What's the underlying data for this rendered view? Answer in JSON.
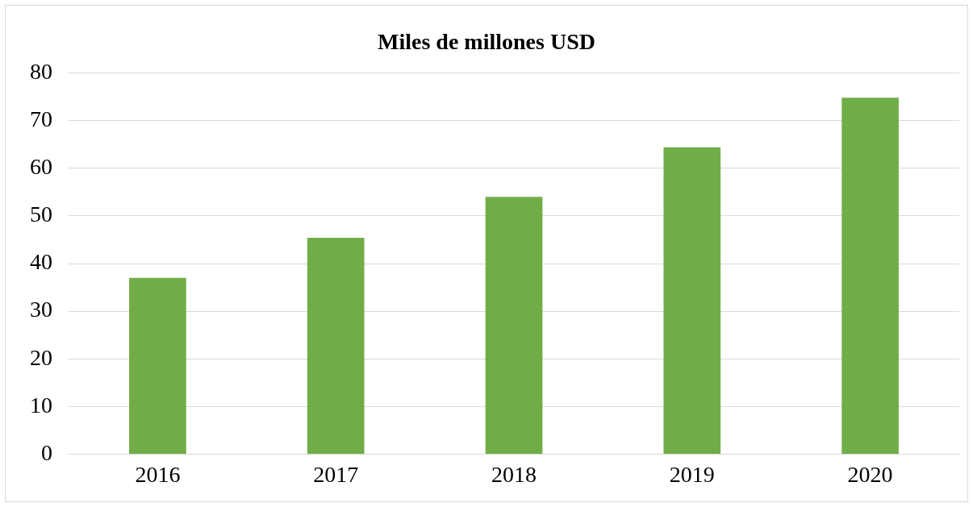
{
  "chart_data": {
    "type": "bar",
    "title": "Miles de millones USD",
    "categories": [
      "2016",
      "2017",
      "2018",
      "2019",
      "2020"
    ],
    "values": [
      37,
      45.4,
      54,
      64.4,
      74.8
    ],
    "color": "#70ad47",
    "ylim": [
      0,
      80
    ],
    "yticks": [
      0,
      10,
      20,
      30,
      40,
      50,
      60,
      70,
      80
    ],
    "grid": "y",
    "legend": false
  }
}
